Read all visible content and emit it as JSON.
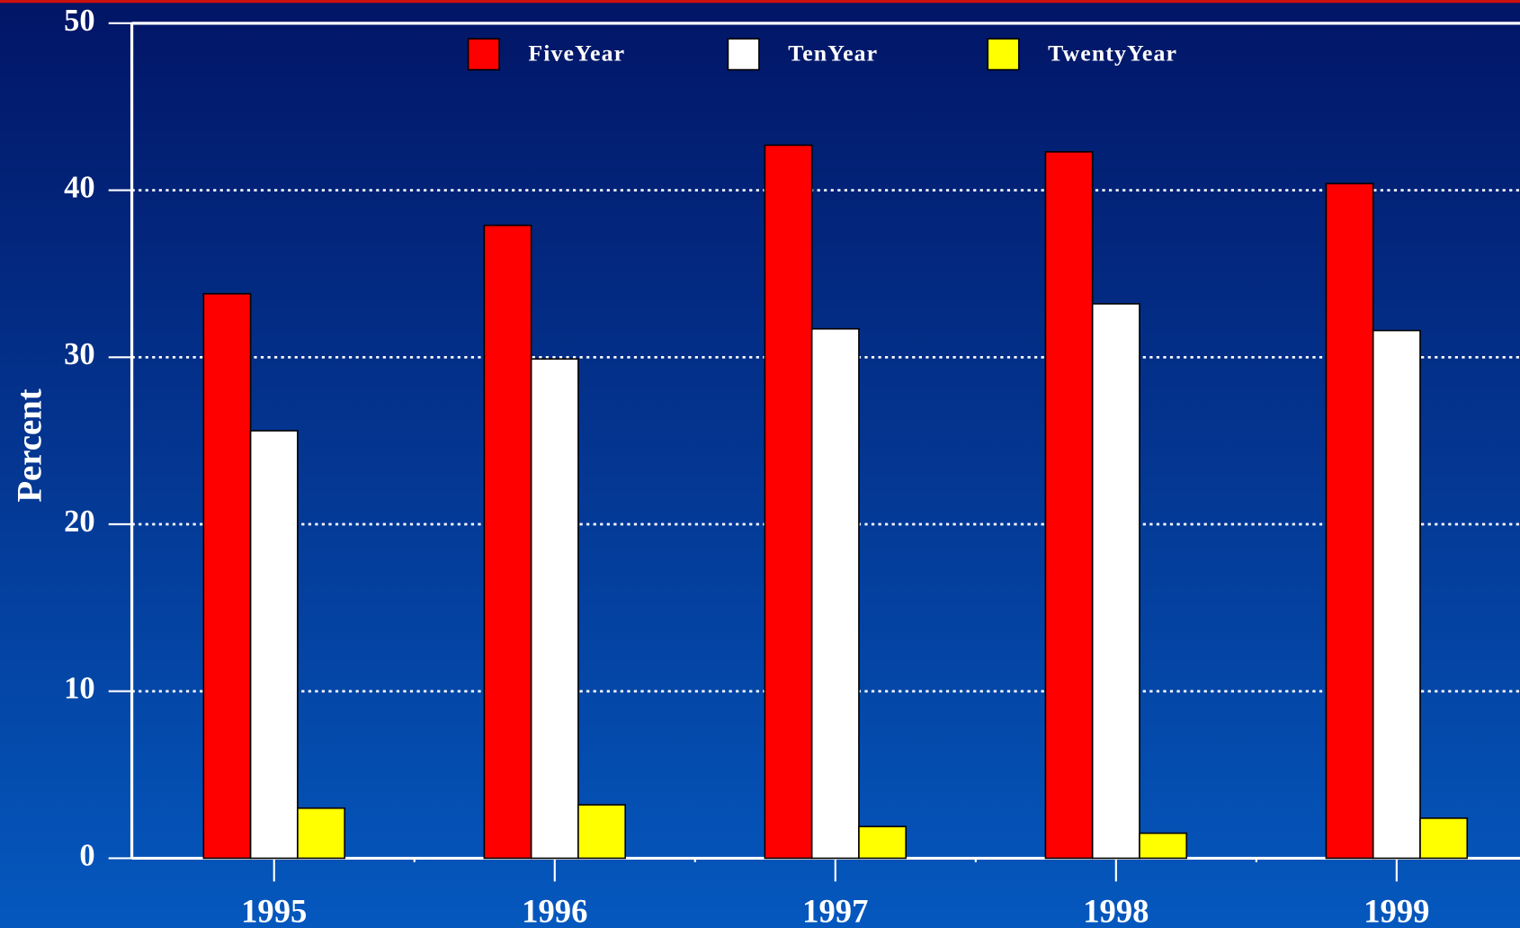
{
  "chart_data": {
    "type": "bar",
    "y_label": "Percent",
    "categories": [
      "1995",
      "1996",
      "1997",
      "1998",
      "1999"
    ],
    "series": [
      {
        "name": "FiveYear",
        "color": "#ff0000",
        "values": [
          33.8,
          37.9,
          42.7,
          42.3,
          40.4
        ]
      },
      {
        "name": "TenYear",
        "color": "#ffffff",
        "values": [
          25.6,
          29.9,
          31.7,
          33.2,
          31.6
        ]
      },
      {
        "name": "TwentyYear",
        "color": "#ffff00",
        "values": [
          3.0,
          3.2,
          1.9,
          1.5,
          2.4
        ]
      }
    ],
    "ylim": [
      0,
      50
    ],
    "yticks": [
      0,
      10,
      20,
      30,
      40,
      50
    ],
    "grid": true,
    "legend": "top"
  }
}
